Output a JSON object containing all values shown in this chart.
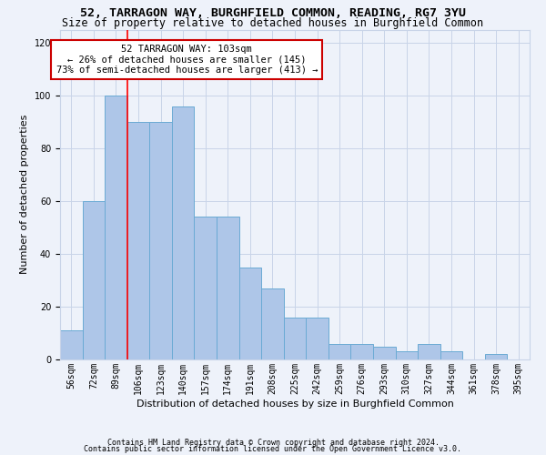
{
  "title1": "52, TARRAGON WAY, BURGHFIELD COMMON, READING, RG7 3YU",
  "title2": "Size of property relative to detached houses in Burghfield Common",
  "xlabel": "Distribution of detached houses by size in Burghfield Common",
  "ylabel": "Number of detached properties",
  "categories": [
    "56sqm",
    "72sqm",
    "89sqm",
    "106sqm",
    "123sqm",
    "140sqm",
    "157sqm",
    "174sqm",
    "191sqm",
    "208sqm",
    "225sqm",
    "242sqm",
    "259sqm",
    "276sqm",
    "293sqm",
    "310sqm",
    "327sqm",
    "344sqm",
    "361sqm",
    "378sqm",
    "395sqm"
  ],
  "values": [
    11,
    60,
    100,
    90,
    90,
    96,
    54,
    54,
    35,
    27,
    16,
    16,
    6,
    6,
    5,
    3,
    6,
    3,
    0,
    2,
    0
  ],
  "bar_color": "#aec6e8",
  "bar_edge_color": "#6aaad4",
  "ylim": [
    0,
    125
  ],
  "yticks": [
    0,
    20,
    40,
    60,
    80,
    100,
    120
  ],
  "red_line_x": 2.53,
  "annotation_text": "52 TARRAGON WAY: 103sqm\n← 26% of detached houses are smaller (145)\n73% of semi-detached houses are larger (413) →",
  "annotation_box_color": "#ffffff",
  "annotation_box_edge": "#cc0000",
  "footer1": "Contains HM Land Registry data © Crown copyright and database right 2024.",
  "footer2": "Contains public sector information licensed under the Open Government Licence v3.0.",
  "bg_color": "#eef2fa",
  "grid_color": "#c8d4e8",
  "title1_fontsize": 9.5,
  "title2_fontsize": 8.5,
  "xlabel_fontsize": 8,
  "ylabel_fontsize": 8,
  "tick_fontsize": 7,
  "annotation_fontsize": 7.5,
  "footer_fontsize": 6
}
